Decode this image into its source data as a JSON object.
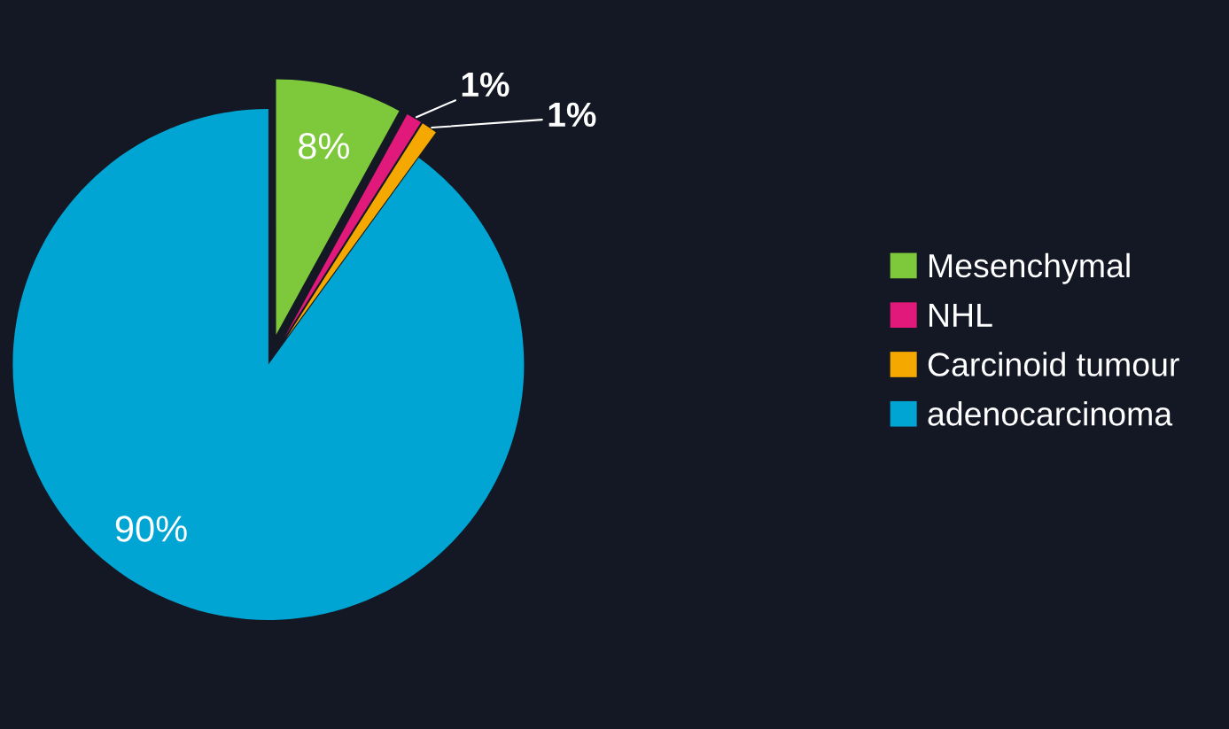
{
  "chart_data": {
    "type": "pie",
    "categories": [
      "Mesenchymal",
      "NHL",
      "Carcinoid tumour",
      "adenocarcinoma"
    ],
    "values": [
      8,
      1,
      1,
      90
    ],
    "colors": [
      "#7dc93b",
      "#e0197a",
      "#f5a800",
      "#00a5d3"
    ],
    "value_labels": [
      "8%",
      "1%",
      "1%",
      "90%"
    ],
    "legend": "right"
  }
}
